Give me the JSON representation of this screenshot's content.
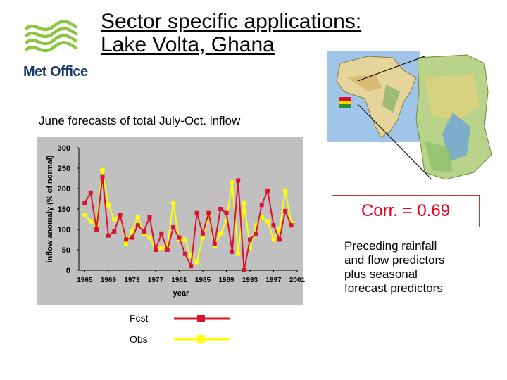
{
  "slide": {
    "title_line1": "Sector specific applications:",
    "title_line2": "Lake Volta, Ghana",
    "subtitle": "June forecasts of total July-Oct. inflow",
    "logo_text": "Met Office"
  },
  "stats": {
    "correlation": "Corr. = 0.69",
    "note_line1": "Preceding rainfall",
    "note_line2": "and flow predictors",
    "note_line3": "plus seasonal",
    "note_line4": "forecast predictors"
  },
  "colors": {
    "fcst": "#d9142a",
    "obs": "#ffff00",
    "plot_bg": "#c0c0c0",
    "logo_green": "#8cc63f",
    "logo_blue": "#1a3a6b"
  },
  "chart_data": {
    "type": "line",
    "xlabel": "year",
    "ylabel": "inflow anomaly (% of normal)",
    "ylim": [
      0,
      300
    ],
    "yticks": [
      0,
      50,
      100,
      150,
      200,
      250,
      300
    ],
    "xticks": [
      1965,
      1969,
      1973,
      1977,
      1981,
      1985,
      1989,
      1993,
      1997,
      2001
    ],
    "x": [
      1965,
      1966,
      1967,
      1968,
      1969,
      1970,
      1971,
      1972,
      1973,
      1974,
      1975,
      1976,
      1977,
      1978,
      1979,
      1980,
      1981,
      1982,
      1983,
      1984,
      1985,
      1986,
      1987,
      1988,
      1989,
      1990,
      1991,
      1992,
      1993,
      1994,
      1995,
      1996,
      1997,
      1998,
      1999,
      2000
    ],
    "series": [
      {
        "name": "Fcst",
        "values": [
          165,
          190,
          100,
          230,
          85,
          95,
          135,
          75,
          80,
          110,
          95,
          130,
          50,
          90,
          50,
          105,
          80,
          40,
          10,
          140,
          90,
          140,
          65,
          150,
          140,
          45,
          220,
          0,
          75,
          90,
          160,
          195,
          110,
          75,
          145,
          110
        ]
      },
      {
        "name": "Obs",
        "values": [
          135,
          120,
          110,
          245,
          160,
          125,
          135,
          65,
          95,
          130,
          90,
          80,
          50,
          55,
          60,
          165,
          75,
          75,
          35,
          20,
          80,
          135,
          60,
          90,
          120,
          215,
          40,
          165,
          55,
          110,
          130,
          120,
          75,
          100,
          195,
          115
        ]
      }
    ],
    "legend": [
      "Fcst",
      "Obs"
    ]
  }
}
